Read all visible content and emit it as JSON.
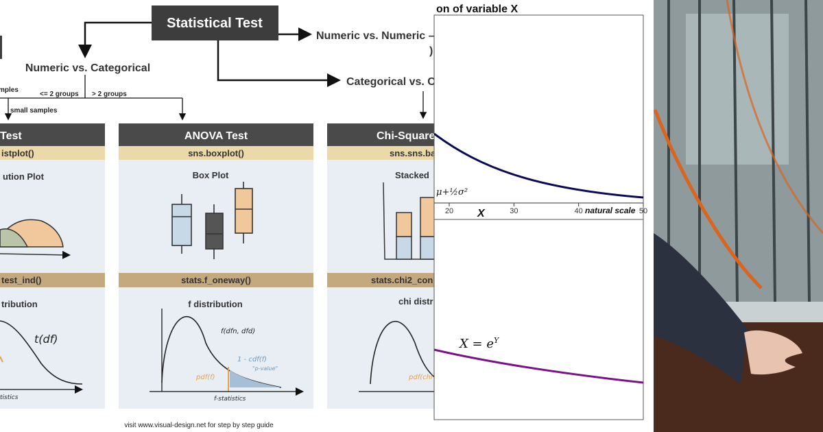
{
  "diagram": {
    "root": "Statistical Test",
    "branches": [
      "Numeric vs. Numeric –",
      "Numeric vs. Categorical",
      "Categorical vs. C"
    ],
    "fragment": ")",
    "edge_labels": [
      "mples",
      "<= 2 groups",
      "> 2 groups",
      "small samples"
    ],
    "cards": [
      {
        "title": "Test",
        "plot_func": "istplot()",
        "plot_name": "ution Plot",
        "test_func": "test_ind()",
        "dist_name": "tribution",
        "notes": [
          "t(df)",
          "tistics"
        ]
      },
      {
        "title": "ANOVA Test",
        "plot_func": "sns.boxplot()",
        "plot_name": "Box Plot",
        "test_func": "stats.f_oneway()",
        "dist_name": "f distribution",
        "notes": [
          "f(dfn, dfd)",
          "1 - cdf(f)",
          "\"p-value\"",
          "pdf(f)",
          "f-statistics"
        ]
      },
      {
        "title": "Chi-Square",
        "plot_func": "sns.sns.ba",
        "plot_name": "Stacked",
        "test_func": "stats.chi2_con",
        "dist_name": "chi distr",
        "notes": [
          "pdf(chi"
        ]
      }
    ],
    "footer": "visit www.visual-design.net for step by step guide"
  },
  "panel": {
    "title": "on of variable X",
    "upper": {
      "formula": "μ+½σ²",
      "axis_label": "X",
      "scale_label": "natural scale",
      "ticks": [
        20,
        30,
        40,
        50
      ]
    },
    "lower": {
      "formula_base": "X = e",
      "formula_exp": "Y"
    }
  }
}
